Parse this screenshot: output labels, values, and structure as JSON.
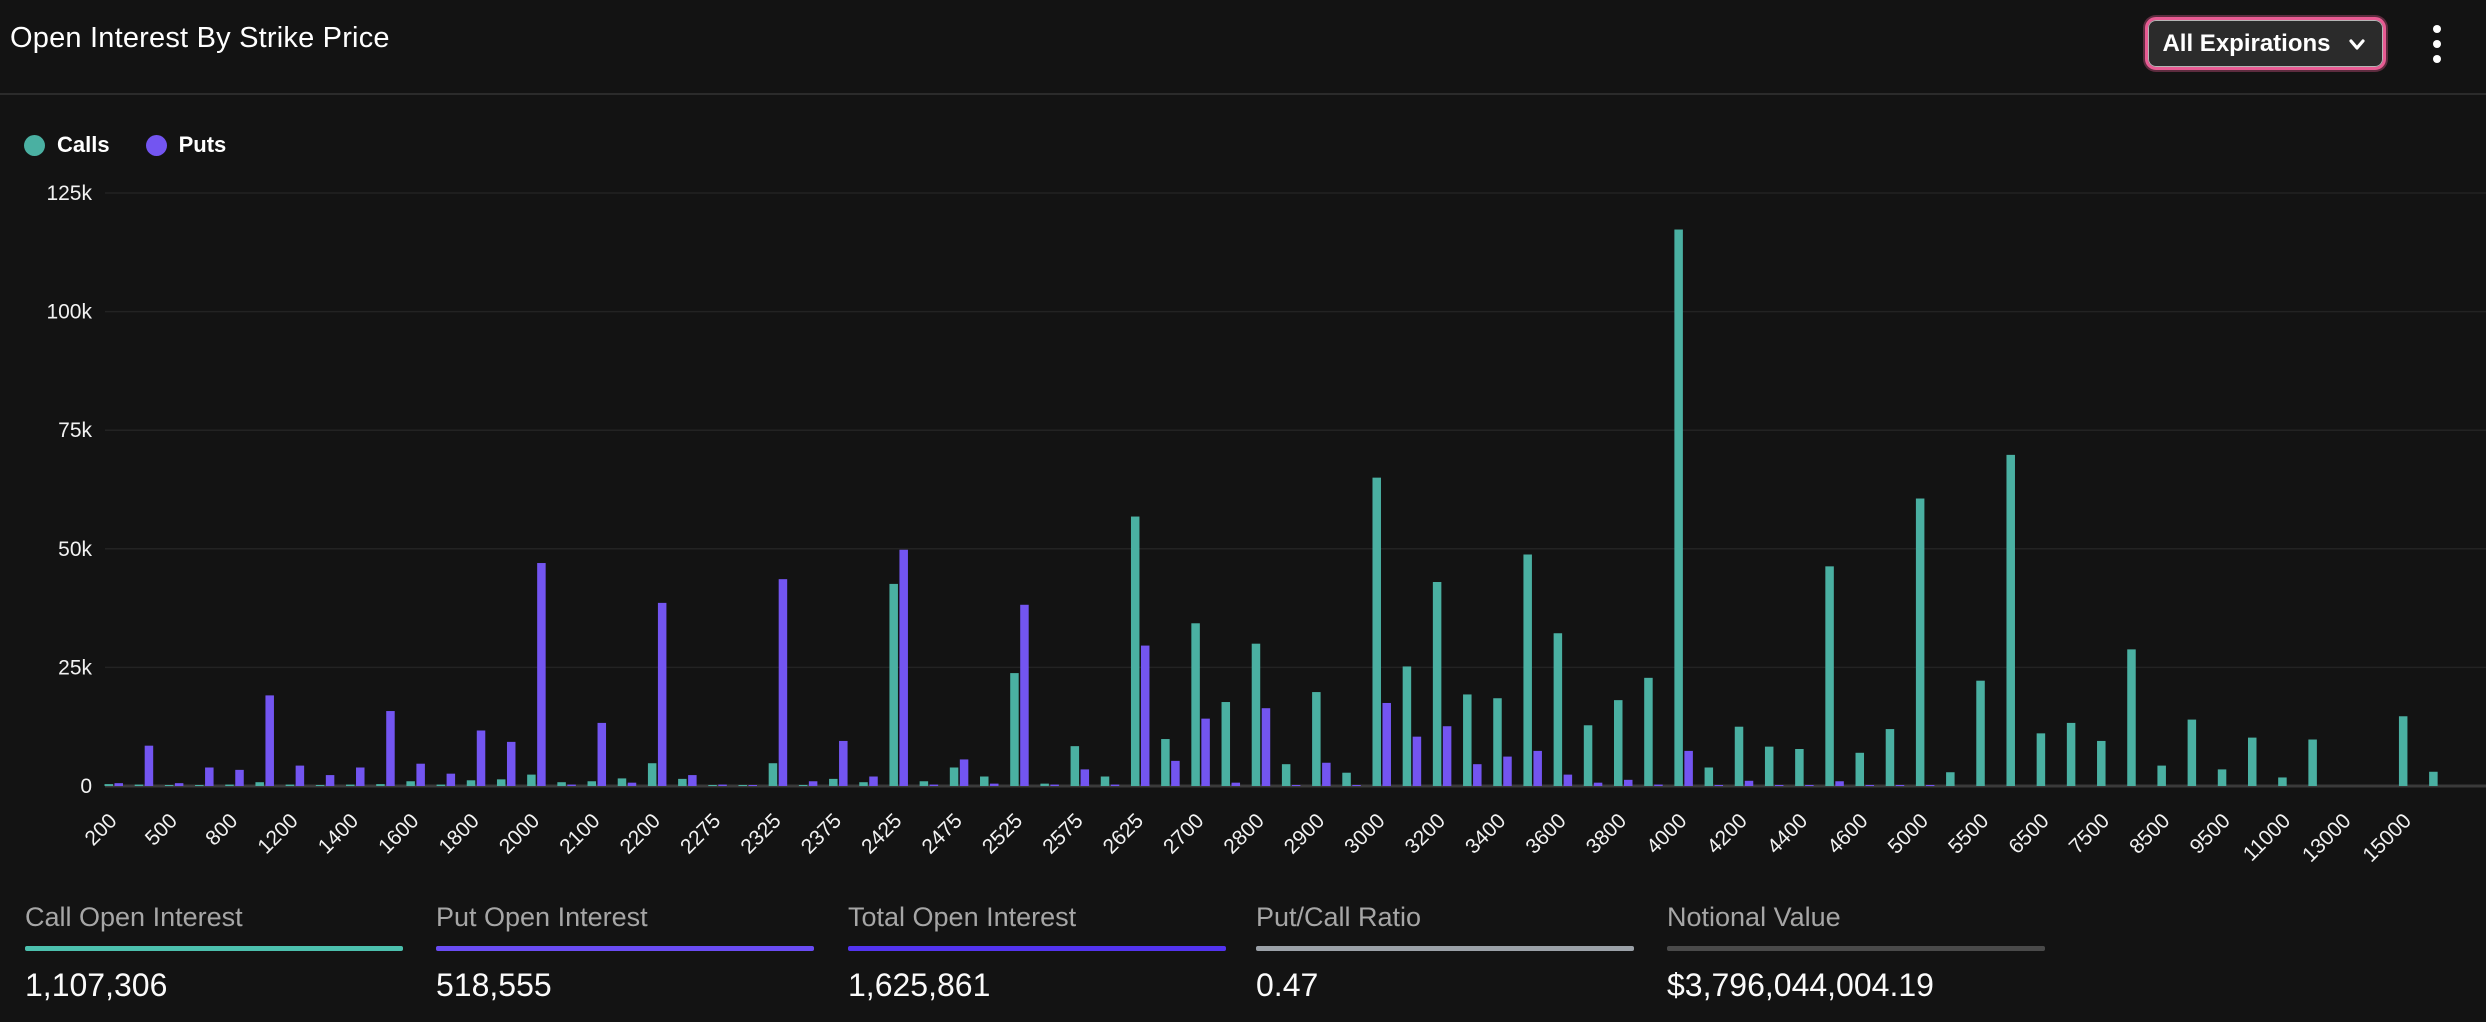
{
  "header": {
    "title": "Open Interest By Strike Price",
    "expiry_filter": {
      "label": "All Expirations",
      "ring_color": "#e85b93"
    },
    "menu_icon": "kebab-menu"
  },
  "legend": [
    {
      "name": "Calls",
      "color": "#4ab0a2"
    },
    {
      "name": "Puts",
      "color": "#7355f1"
    }
  ],
  "chart_data": {
    "type": "bar",
    "series": [
      "Calls",
      "Puts"
    ],
    "colors": {
      "calls": "#4ab0a2",
      "puts": "#7355f1"
    },
    "xlabel": "",
    "ylabel": "",
    "ylim": [
      0,
      125000
    ],
    "grid": true,
    "legend_position": "top-left",
    "y_ticks": [
      {
        "value": 0,
        "label": "0"
      },
      {
        "value": 25000,
        "label": "25k"
      },
      {
        "value": 50000,
        "label": "50k"
      },
      {
        "value": 75000,
        "label": "75k"
      },
      {
        "value": 100000,
        "label": "100k"
      },
      {
        "value": 125000,
        "label": "125k"
      }
    ],
    "groups": [
      {
        "label": "200",
        "call": 400,
        "put": 600
      },
      {
        "label": "",
        "call": 300,
        "put": 8500
      },
      {
        "label": "500",
        "call": 200,
        "put": 600
      },
      {
        "label": "",
        "call": 200,
        "put": 3900
      },
      {
        "label": "800",
        "call": 300,
        "put": 3400
      },
      {
        "label": "",
        "call": 800,
        "put": 19100
      },
      {
        "label": "1200",
        "call": 300,
        "put": 4300
      },
      {
        "label": "",
        "call": 200,
        "put": 2300
      },
      {
        "label": "1400",
        "call": 300,
        "put": 3900
      },
      {
        "label": "",
        "call": 400,
        "put": 15800
      },
      {
        "label": "1600",
        "call": 1000,
        "put": 4700
      },
      {
        "label": "",
        "call": 300,
        "put": 2600
      },
      {
        "label": "1800",
        "call": 1200,
        "put": 11700
      },
      {
        "label": "",
        "call": 1400,
        "put": 9300
      },
      {
        "label": "2000",
        "call": 2400,
        "put": 47000
      },
      {
        "label": "",
        "call": 800,
        "put": 300
      },
      {
        "label": "2100",
        "call": 1000,
        "put": 13300
      },
      {
        "label": "",
        "call": 1600,
        "put": 700
      },
      {
        "label": "2200",
        "call": 4800,
        "put": 38600
      },
      {
        "label": "",
        "call": 1500,
        "put": 2300
      },
      {
        "label": "2275",
        "call": 200,
        "put": 300
      },
      {
        "label": "",
        "call": 200,
        "put": 200
      },
      {
        "label": "2325",
        "call": 4800,
        "put": 43600
      },
      {
        "label": "",
        "call": 200,
        "put": 1000
      },
      {
        "label": "2375",
        "call": 1500,
        "put": 9500
      },
      {
        "label": "",
        "call": 800,
        "put": 2000
      },
      {
        "label": "2425",
        "call": 42600,
        "put": 49800
      },
      {
        "label": "",
        "call": 1000,
        "put": 300
      },
      {
        "label": "2475",
        "call": 3900,
        "put": 5600
      },
      {
        "label": "",
        "call": 2000,
        "put": 500
      },
      {
        "label": "2525",
        "call": 23800,
        "put": 38200
      },
      {
        "label": "",
        "call": 500,
        "put": 300
      },
      {
        "label": "2575",
        "call": 8400,
        "put": 3500
      },
      {
        "label": "",
        "call": 2000,
        "put": 300
      },
      {
        "label": "2625",
        "call": 56800,
        "put": 29600
      },
      {
        "label": "",
        "call": 9900,
        "put": 5300
      },
      {
        "label": "2700",
        "call": 34300,
        "put": 14200
      },
      {
        "label": "",
        "call": 17700,
        "put": 700
      },
      {
        "label": "2800",
        "call": 30000,
        "put": 16400
      },
      {
        "label": "",
        "call": 4600,
        "put": 200
      },
      {
        "label": "2900",
        "call": 19800,
        "put": 4900
      },
      {
        "label": "",
        "call": 2800,
        "put": 200
      },
      {
        "label": "3000",
        "call": 65000,
        "put": 17500
      },
      {
        "label": "",
        "call": 25200,
        "put": 10400
      },
      {
        "label": "3200",
        "call": 43000,
        "put": 12600
      },
      {
        "label": "",
        "call": 19300,
        "put": 4600
      },
      {
        "label": "3400",
        "call": 18500,
        "put": 6200
      },
      {
        "label": "",
        "call": 48800,
        "put": 7400
      },
      {
        "label": "3600",
        "call": 32200,
        "put": 2400
      },
      {
        "label": "",
        "call": 12800,
        "put": 700
      },
      {
        "label": "3800",
        "call": 18100,
        "put": 1300
      },
      {
        "label": "",
        "call": 22800,
        "put": 300
      },
      {
        "label": "4000",
        "call": 117300,
        "put": 7400
      },
      {
        "label": "",
        "call": 3900,
        "put": 100
      },
      {
        "label": "4200",
        "call": 12500,
        "put": 1100
      },
      {
        "label": "",
        "call": 8300,
        "put": 100
      },
      {
        "label": "4400",
        "call": 7800,
        "put": 100
      },
      {
        "label": "",
        "call": 46300,
        "put": 1000
      },
      {
        "label": "4600",
        "call": 7000,
        "put": 100
      },
      {
        "label": "",
        "call": 12000,
        "put": 100
      },
      {
        "label": "5000",
        "call": 60600,
        "put": 200
      },
      {
        "label": "",
        "call": 2900,
        "put": 0
      },
      {
        "label": "5500",
        "call": 22200,
        "put": 0
      },
      {
        "label": "",
        "call": 69800,
        "put": 0
      },
      {
        "label": "6500",
        "call": 11100,
        "put": 0
      },
      {
        "label": "",
        "call": 13300,
        "put": 0
      },
      {
        "label": "7500",
        "call": 9500,
        "put": 0
      },
      {
        "label": "",
        "call": 28800,
        "put": 0
      },
      {
        "label": "8500",
        "call": 4300,
        "put": 0
      },
      {
        "label": "",
        "call": 14000,
        "put": 0
      },
      {
        "label": "9500",
        "call": 3500,
        "put": 0
      },
      {
        "label": "",
        "call": 10200,
        "put": 0
      },
      {
        "label": "11000",
        "call": 1800,
        "put": 0
      },
      {
        "label": "",
        "call": 9800,
        "put": 0
      },
      {
        "label": "13000",
        "call": 0,
        "put": 0
      },
      {
        "label": "",
        "call": 0,
        "put": 0
      },
      {
        "label": "15000",
        "call": 14700,
        "put": 0
      },
      {
        "label": "",
        "call": 3000,
        "put": 0
      }
    ]
  },
  "stats": [
    {
      "label": "Call Open Interest",
      "value": "1,107,306",
      "underline_color": "#4cc0ae"
    },
    {
      "label": "Put Open Interest",
      "value": "518,555",
      "underline_color": "#6a4cf4"
    },
    {
      "label": "Total Open Interest",
      "value": "1,625,861",
      "underline_color": "#5334f0"
    },
    {
      "label": "Put/Call Ratio",
      "value": "0.47",
      "underline_color": "#9ba1a8"
    },
    {
      "label": "Notional Value",
      "value": "$3,796,044,004.19",
      "underline_color": "#4a4a4a"
    }
  ]
}
